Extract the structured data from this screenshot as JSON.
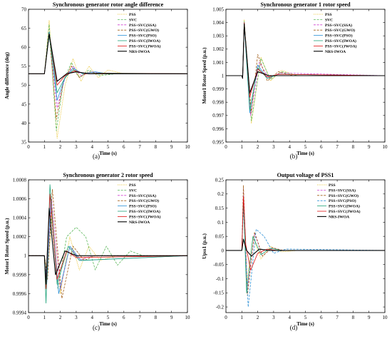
{
  "colors": {
    "pss": "#e8c020",
    "svc": "#5cb85c",
    "ssa": "#d040d0",
    "gwo": "#a05a14",
    "pso": "#2a8fd6",
    "iwoa": "#1fa37a",
    "jwoa": "#e01010",
    "nrs": "#000000"
  },
  "chart_data": [
    {
      "type": "line",
      "panel_label": "(a)",
      "title": "Synchronous generator rotor angle difference",
      "xlabel": "Time (s)",
      "ylabel": "Angle difference (deg)",
      "xlim": [
        0,
        10
      ],
      "ylim": [
        35,
        70
      ],
      "xticks": [
        "0",
        "1",
        "2",
        "3",
        "4",
        "5",
        "6",
        "7",
        "8",
        "9",
        "10"
      ],
      "yticks": [
        "35",
        "40",
        "45",
        "50",
        "55",
        "60",
        "65",
        "70"
      ],
      "legend_position": "top-right",
      "series": [
        {
          "name": "PSS",
          "color_key": "pss",
          "dash": "dotted",
          "x": [
            0,
            1.0,
            1.3,
            1.8,
            2.3,
            2.8,
            3.3,
            3.8,
            4.4,
            5.0,
            6.0,
            10
          ],
          "y": [
            53,
            53,
            67,
            36,
            50,
            57,
            51,
            55,
            52,
            54,
            53,
            53
          ]
        },
        {
          "name": "SVC",
          "color_key": "svc",
          "dash": "dashed",
          "x": [
            0,
            1.0,
            1.3,
            1.75,
            2.2,
            2.7,
            3.2,
            3.8,
            4.5,
            5.5,
            10
          ],
          "y": [
            53,
            53,
            66,
            38,
            51,
            56,
            52,
            54,
            52.5,
            53,
            53
          ]
        },
        {
          "name": "PSS+SVC(SSA)",
          "color_key": "ssa",
          "dash": "dashed",
          "x": [
            0,
            1.0,
            1.3,
            1.8,
            2.3,
            2.8,
            3.3,
            4.0,
            5.0,
            10
          ],
          "y": [
            53,
            53,
            64,
            44,
            52,
            55,
            52.5,
            53.5,
            53,
            53
          ]
        },
        {
          "name": "PSS+SVC(GWO)",
          "color_key": "gwo",
          "dash": "dashed",
          "x": [
            0,
            1.0,
            1.3,
            1.75,
            2.2,
            2.7,
            3.2,
            3.8,
            4.5,
            10
          ],
          "y": [
            53,
            53,
            64,
            41,
            51,
            55,
            52,
            53.5,
            53,
            53
          ]
        },
        {
          "name": "PSS+SVC(PSO)",
          "color_key": "pso",
          "dash": "solid",
          "x": [
            0,
            1.0,
            1.3,
            1.8,
            2.3,
            2.8,
            3.4,
            4.2,
            5.0,
            10
          ],
          "y": [
            53,
            53,
            64,
            46,
            52,
            54.5,
            53,
            53.5,
            53,
            53
          ]
        },
        {
          "name": "PSS+SVC(IWOA)",
          "color_key": "iwoa",
          "dash": "solid",
          "x": [
            0,
            1.0,
            1.3,
            1.8,
            2.3,
            2.8,
            3.5,
            4.5,
            10
          ],
          "y": [
            53,
            53,
            63,
            48,
            52,
            54,
            53,
            53.2,
            53
          ]
        },
        {
          "name": "PSS+SVC(JWOA)",
          "color_key": "jwoa",
          "dash": "solid",
          "x": [
            0,
            1.0,
            1.3,
            1.8,
            2.3,
            2.9,
            3.6,
            4.5,
            10
          ],
          "y": [
            53,
            53,
            63.5,
            50,
            52.5,
            53.8,
            53,
            53.1,
            53
          ]
        },
        {
          "name": "NRS-IWOA",
          "color_key": "nrs",
          "dash": "solid",
          "x": [
            0,
            1.0,
            1.3,
            1.8,
            2.4,
            3.0,
            3.8,
            10
          ],
          "y": [
            53,
            53,
            63.5,
            51,
            53,
            53.5,
            53,
            53
          ]
        }
      ]
    },
    {
      "type": "line",
      "panel_label": "(b)",
      "title": "Synchronous generator 1 rotor speed",
      "xlabel": "Time (s)",
      "ylabel": "Motor1 Rotor Speed (p.u.)",
      "xlim": [
        0,
        10
      ],
      "ylim": [
        0.995,
        1.005
      ],
      "xticks": [
        "0",
        "1",
        "2",
        "3",
        "4",
        "5",
        "6",
        "7",
        "8",
        "9",
        "10"
      ],
      "yticks": [
        "0.995",
        "0.996",
        "0.997",
        "0.998",
        "0.999",
        "1",
        "1.001",
        "1.002",
        "1.003",
        "1.004",
        "1.005"
      ],
      "legend_position": "top-right",
      "series": [
        {
          "name": "PSS",
          "color_key": "pss",
          "dash": "dotted",
          "x": [
            0,
            1.0,
            1.05,
            1.15,
            1.6,
            2.2,
            2.8,
            3.5,
            4.5,
            10
          ],
          "y": [
            1,
            1,
            0.9998,
            1.0042,
            0.9964,
            1.0014,
            0.9996,
            1.0004,
            1,
            1
          ]
        },
        {
          "name": "SVC",
          "color_key": "svc",
          "dash": "dashed",
          "x": [
            0,
            1.0,
            1.05,
            1.15,
            1.6,
            2.2,
            2.8,
            3.5,
            4.5,
            10
          ],
          "y": [
            1,
            1,
            0.9998,
            1.0041,
            0.9966,
            1.0013,
            0.9997,
            1.0003,
            1,
            1
          ]
        },
        {
          "name": "PSS+SVC(SSA)",
          "color_key": "ssa",
          "dash": "dashed",
          "x": [
            0,
            1.0,
            1.05,
            1.15,
            1.55,
            2.1,
            2.7,
            3.4,
            10
          ],
          "y": [
            1,
            1,
            0.9998,
            1.004,
            0.997,
            1.001,
            0.9998,
            1.0002,
            1
          ]
        },
        {
          "name": "PSS+SVC(GWO)",
          "color_key": "gwo",
          "dash": "dashed",
          "x": [
            0,
            1.0,
            1.05,
            1.15,
            1.6,
            2.0,
            2.6,
            3.3,
            4.2,
            10
          ],
          "y": [
            1,
            1,
            0.9998,
            1.004,
            0.9972,
            1.0016,
            0.9996,
            1.0003,
            1,
            1
          ]
        },
        {
          "name": "PSS+SVC(PSO)",
          "color_key": "pso",
          "dash": "solid",
          "x": [
            0,
            1.0,
            1.05,
            1.15,
            1.5,
            2.0,
            2.6,
            3.3,
            10
          ],
          "y": [
            1,
            1,
            0.9998,
            1.004,
            0.9972,
            1.0008,
            0.9998,
            1.0001,
            1
          ]
        },
        {
          "name": "PSS+SVC(IWOA)",
          "color_key": "iwoa",
          "dash": "solid",
          "x": [
            0,
            1.0,
            1.05,
            1.15,
            1.5,
            2.0,
            2.6,
            3.3,
            10
          ],
          "y": [
            1,
            1,
            0.9998,
            1.004,
            0.9974,
            1.0006,
            0.9998,
            1.0001,
            1
          ]
        },
        {
          "name": "PSS+SVC(JWOA)",
          "color_key": "jwoa",
          "dash": "solid",
          "x": [
            0,
            1.0,
            1.05,
            1.15,
            1.5,
            2.0,
            2.6,
            3.3,
            10
          ],
          "y": [
            1,
            1,
            0.9998,
            1.004,
            0.9984,
            1.0005,
            0.9999,
            1.0001,
            1
          ]
        },
        {
          "name": "NRS-IWOA",
          "color_key": "nrs",
          "dash": "solid",
          "x": [
            0,
            1.0,
            1.05,
            1.15,
            1.5,
            2.0,
            2.7,
            10
          ],
          "y": [
            1,
            1,
            0.9998,
            1.0039,
            0.9987,
            1.0003,
            1,
            1
          ]
        }
      ]
    },
    {
      "type": "line",
      "panel_label": "(c)",
      "title": "Synchronous generator 2 rotor speed",
      "xlabel": "Time (s)",
      "ylabel": "Motor1 Rotor Speed (p.u.)",
      "xlim": [
        0,
        10
      ],
      "ylim": [
        0.9994,
        1.0008
      ],
      "xticks": [
        "0",
        "1",
        "2",
        "3",
        "4",
        "5",
        "6",
        "7",
        "8",
        "9",
        "10"
      ],
      "yticks": [
        "0.9994",
        "0.9996",
        "0.9998",
        "1",
        "1.0002",
        "1.0004",
        "1.0006",
        "1.0008"
      ],
      "legend_position": "top-right",
      "series": [
        {
          "name": "PSS",
          "color_key": "pss",
          "dash": "dotted",
          "x": [
            0,
            1.0,
            1.2,
            1.5,
            2.0,
            2.6,
            3.2,
            3.8,
            4.5,
            5.5,
            10
          ],
          "y": [
            1,
            1,
            0.9998,
            1.0005,
            0.9996,
            1.0002,
            0.99985,
            1.0001,
            0.99995,
            1,
            1
          ]
        },
        {
          "name": "SVC",
          "color_key": "svc",
          "dash": "dashed",
          "x": [
            0,
            1.0,
            1.15,
            1.45,
            1.85,
            2.4,
            3.0,
            3.6,
            4.2,
            4.9,
            5.6,
            6.4,
            7.2,
            10
          ],
          "y": [
            1,
            1,
            0.99975,
            1.0004,
            0.99965,
            1.0002,
            1.0003,
            1.0002,
            0.99985,
            1.0001,
            0.9999,
            1.00005,
            1,
            1
          ]
        },
        {
          "name": "PSS+SVC(SSA)",
          "color_key": "ssa",
          "dash": "dashed",
          "x": [
            0,
            1.0,
            1.15,
            1.45,
            2.0,
            2.6,
            3.2,
            4.0,
            10
          ],
          "y": [
            1,
            1,
            0.99972,
            1.0006,
            0.99965,
            1.0001,
            0.99995,
            1,
            1
          ]
        },
        {
          "name": "PSS+SVC(GWO)",
          "color_key": "gwo",
          "dash": "dashed",
          "x": [
            0,
            1.0,
            1.2,
            1.5,
            2.1,
            2.8,
            3.5,
            4.2,
            10
          ],
          "y": [
            1,
            1,
            0.99975,
            1.0007,
            0.99955,
            1.0001,
            0.99995,
            1,
            1
          ]
        },
        {
          "name": "PSS+SVC(PSO)",
          "color_key": "pso",
          "dash": "solid",
          "x": [
            0,
            1.0,
            1.15,
            1.4,
            1.9,
            2.6,
            3.3,
            10
          ],
          "y": [
            1,
            1,
            0.9997,
            1.0006,
            0.9996,
            1.0001,
            0.99995,
            1
          ]
        },
        {
          "name": "PSS+SVC(IWOA)",
          "color_key": "iwoa",
          "dash": "solid",
          "x": [
            0,
            1.0,
            1.1,
            1.35,
            1.8,
            2.5,
            3.2,
            10
          ],
          "y": [
            1,
            1,
            0.9995,
            1.00075,
            0.9997,
            1.0001,
            0.99995,
            1
          ]
        },
        {
          "name": "PSS+SVC(JWOA)",
          "color_key": "jwoa",
          "dash": "solid",
          "x": [
            0,
            1.0,
            1.1,
            1.35,
            1.8,
            2.4,
            3.0,
            10
          ],
          "y": [
            1,
            1,
            0.99965,
            1.00065,
            0.99975,
            1.00005,
            0.99998,
            1
          ]
        },
        {
          "name": "NRS-IWOA",
          "color_key": "nrs",
          "dash": "solid",
          "x": [
            0,
            1.0,
            1.1,
            1.3,
            1.7,
            2.3,
            3.0,
            10
          ],
          "y": [
            1,
            1,
            0.9997,
            1.0005,
            0.9998,
            1.00005,
            1,
            1
          ]
        }
      ]
    },
    {
      "type": "line",
      "panel_label": "(d)",
      "title": "Output voltage of PSS1",
      "xlabel": "Time (s)",
      "ylabel": "Upss1 (p.u.)",
      "xlim": [
        0,
        10
      ],
      "ylim": [
        -0.22,
        0.25
      ],
      "xticks": [
        "0",
        "1",
        "2",
        "3",
        "4",
        "5",
        "6",
        "7",
        "8",
        "9",
        "10"
      ],
      "yticks": [
        "-0.2",
        "-0.15",
        "-0.1",
        "-0.05",
        "0",
        "0.05",
        "0.1",
        "0.15",
        "0.2",
        "0.25"
      ],
      "legend_position": "top-right",
      "series": [
        {
          "name": "PSS",
          "color_key": "pss",
          "dash": "dotted",
          "x": [
            0,
            1.0,
            1.1,
            1.3,
            1.7,
            2.2,
            2.8,
            3.5,
            4.5,
            10
          ],
          "y": [
            0,
            0,
            0.2,
            -0.12,
            0.05,
            -0.03,
            0.015,
            -0.005,
            0,
            0
          ]
        },
        {
          "name": "PSS+SVC(SSA)",
          "color_key": "ssa",
          "dash": "dashed",
          "x": [
            0,
            1.0,
            1.1,
            1.35,
            1.8,
            2.3,
            2.9,
            3.6,
            10
          ],
          "y": [
            0,
            0,
            0.22,
            -0.14,
            0.06,
            -0.02,
            0.01,
            0,
            0
          ]
        },
        {
          "name": "PSS+SVC(GWO)",
          "color_key": "gwo",
          "dash": "dashed",
          "x": [
            0,
            1.0,
            1.1,
            1.35,
            1.8,
            2.3,
            2.9,
            3.6,
            10
          ],
          "y": [
            0,
            0,
            0.23,
            -0.16,
            0.065,
            -0.02,
            0.01,
            0,
            0
          ]
        },
        {
          "name": "PSS+SVC(PSO)",
          "color_key": "pso",
          "dash": "dashed",
          "x": [
            0,
            1.0,
            1.1,
            1.4,
            1.9,
            2.4,
            3.0,
            3.8,
            10
          ],
          "y": [
            0,
            0,
            0.15,
            -0.2,
            0.075,
            0.05,
            -0.01,
            0.005,
            0
          ]
        },
        {
          "name": "PSS+SVC(IWOA)",
          "color_key": "iwoa",
          "dash": "solid",
          "x": [
            0,
            1.0,
            1.1,
            1.3,
            1.7,
            2.2,
            2.8,
            3.5,
            10
          ],
          "y": [
            0,
            0,
            0.18,
            -0.15,
            0.05,
            -0.015,
            0.008,
            0,
            0
          ]
        },
        {
          "name": "PSS+SVC(JWOA)",
          "color_key": "jwoa",
          "dash": "solid",
          "x": [
            0,
            1.0,
            1.1,
            1.25,
            1.55,
            2.0,
            2.6,
            3.2,
            10
          ],
          "y": [
            0,
            0,
            0.19,
            0.02,
            -0.07,
            -0.01,
            0.005,
            0,
            0
          ]
        },
        {
          "name": "NRS-IWOA",
          "color_key": "nrs",
          "dash": "solid",
          "x": [
            0,
            1.0,
            1.1,
            1.3,
            1.6,
            2.1,
            2.7,
            10
          ],
          "y": [
            0,
            0,
            0.04,
            0.0,
            -0.02,
            0.005,
            0,
            0
          ]
        }
      ]
    }
  ]
}
